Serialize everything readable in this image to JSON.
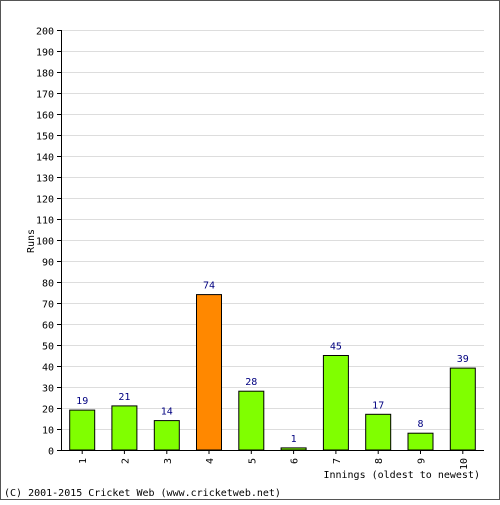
{
  "chart_data": {
    "type": "bar",
    "categories": [
      "1",
      "2",
      "3",
      "4",
      "5",
      "6",
      "7",
      "8",
      "9",
      "10"
    ],
    "values": [
      19,
      21,
      14,
      74,
      28,
      1,
      45,
      17,
      8,
      39
    ],
    "highlight_index": 3,
    "ylabel": "Runs",
    "xlabel": "Innings (oldest to newest)",
    "ylim": [
      0,
      200
    ],
    "yticks": [
      0,
      10,
      20,
      30,
      40,
      50,
      60,
      70,
      80,
      90,
      100,
      110,
      120,
      130,
      140,
      150,
      160,
      170,
      180,
      190,
      200
    ],
    "grid": true,
    "colors": {
      "bar": "#80ff00",
      "highlight": "#ff8800",
      "grid": "#dddddd",
      "data_label": "#000080",
      "border": "#555555"
    }
  },
  "footer": {
    "copyright": "(C) 2001-2015 Cricket Web (www.cricketweb.net)"
  }
}
